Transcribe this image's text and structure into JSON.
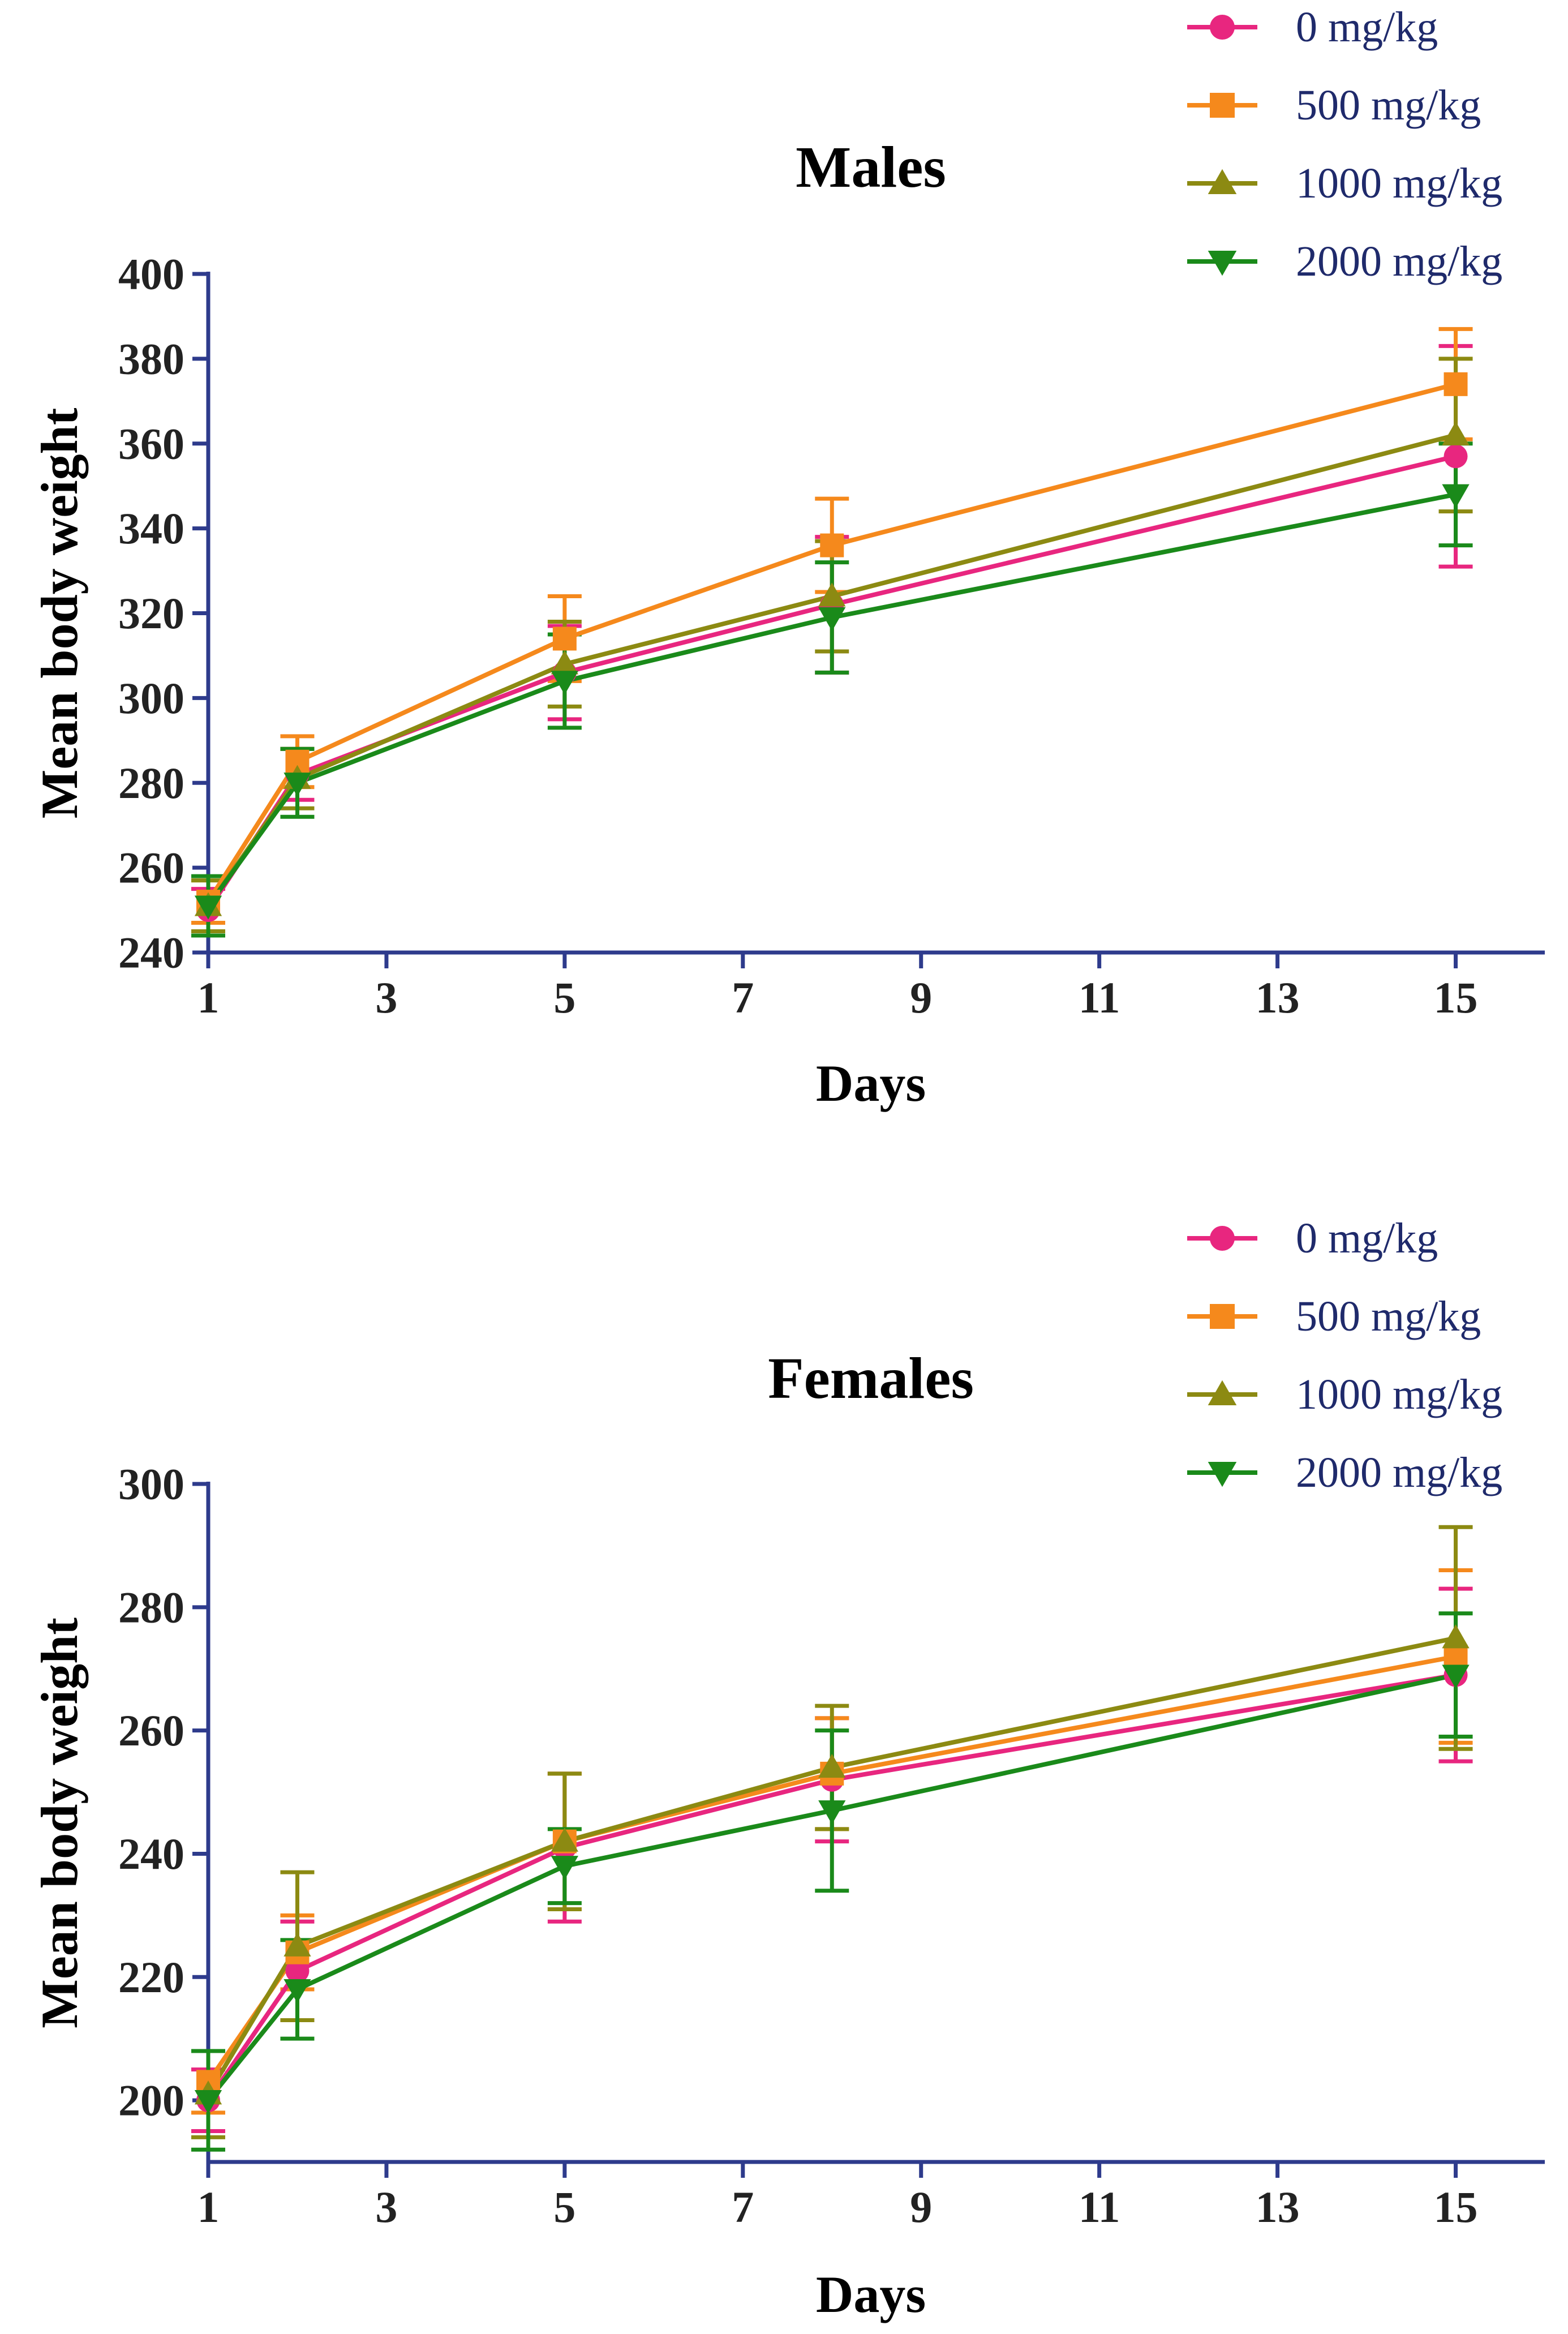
{
  "chart_data": [
    {
      "type": "line",
      "title": "Males",
      "xlabel": "Days",
      "ylabel": "Mean body weight",
      "xlim": [
        1,
        16
      ],
      "ylim": [
        240,
        400
      ],
      "xticks": [
        1,
        3,
        5,
        7,
        9,
        11,
        13,
        15
      ],
      "yticks": [
        240,
        260,
        280,
        300,
        320,
        340,
        360,
        380,
        400
      ],
      "x": [
        1,
        2,
        5,
        8,
        15
      ],
      "legend_position": "top-right",
      "error_bars": true,
      "series": [
        {
          "name": "0 mg/kg",
          "color": "#e8267f",
          "marker": "circle",
          "values": [
            250,
            282,
            306,
            322,
            357
          ],
          "errors": [
            5,
            6,
            11,
            16,
            26
          ]
        },
        {
          "name": "500 mg/kg",
          "color": "#f5891c",
          "marker": "square",
          "values": [
            252,
            285,
            314,
            336,
            374
          ],
          "errors": [
            5,
            6,
            10,
            11,
            13
          ]
        },
        {
          "name": "1000 mg/kg",
          "color": "#8c8a12",
          "marker": "triangle-up",
          "values": [
            251,
            281,
            308,
            324,
            362
          ],
          "errors": [
            6,
            7,
            10,
            13,
            18
          ]
        },
        {
          "name": "2000 mg/kg",
          "color": "#1a8a1a",
          "marker": "triangle-down",
          "values": [
            251,
            280,
            304,
            319,
            348
          ],
          "errors": [
            7,
            8,
            11,
            13,
            12
          ]
        }
      ]
    },
    {
      "type": "line",
      "title": "Females",
      "xlabel": "Days",
      "ylabel": "Mean body weight",
      "xlim": [
        1,
        16
      ],
      "ylim": [
        190,
        300
      ],
      "xticks": [
        1,
        3,
        5,
        7,
        9,
        11,
        13,
        15
      ],
      "yticks": [
        200,
        220,
        240,
        260,
        280,
        300
      ],
      "x": [
        1,
        2,
        5,
        8,
        15
      ],
      "legend_position": "top-right",
      "error_bars": true,
      "series": [
        {
          "name": "0 mg/kg",
          "color": "#e8267f",
          "marker": "circle",
          "values": [
            200,
            221,
            241,
            252,
            269
          ],
          "errors": [
            5,
            8,
            12,
            10,
            14
          ]
        },
        {
          "name": "500 mg/kg",
          "color": "#f5891c",
          "marker": "square",
          "values": [
            203,
            224,
            242,
            253,
            272
          ],
          "errors": [
            5,
            6,
            11,
            9,
            14
          ]
        },
        {
          "name": "1000 mg/kg",
          "color": "#8c8a12",
          "marker": "triangle-up",
          "values": [
            201,
            225,
            242,
            254,
            275
          ],
          "errors": [
            7,
            12,
            11,
            10,
            18
          ]
        },
        {
          "name": "2000 mg/kg",
          "color": "#1a8a1a",
          "marker": "triangle-down",
          "values": [
            200,
            218,
            238,
            247,
            269
          ],
          "errors": [
            8,
            8,
            6,
            13,
            10
          ]
        }
      ]
    }
  ]
}
